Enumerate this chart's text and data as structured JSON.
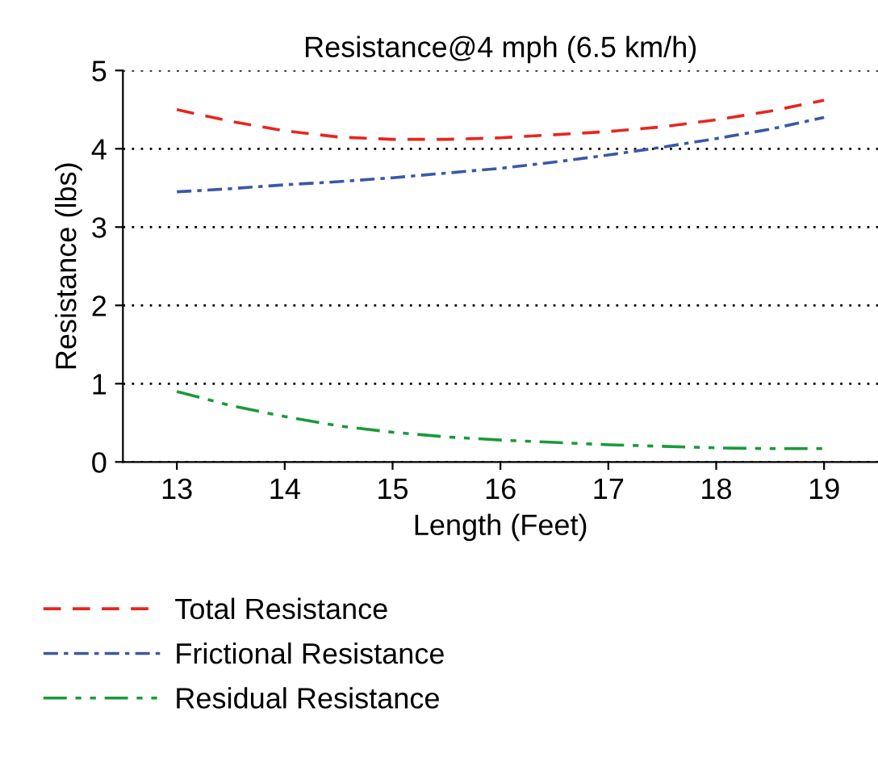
{
  "chart_data": {
    "type": "line",
    "title": "Resistance@4 mph (6.5 km/h)",
    "xlabel": "Length (Feet)",
    "ylabel": "Resistance (lbs)",
    "x": [
      13,
      13.5,
      14,
      14.5,
      15,
      15.5,
      16,
      16.5,
      17,
      17.5,
      18,
      18.5,
      19
    ],
    "series": [
      {
        "name": "Total Resistance",
        "color": "#e8251f",
        "line_style": "dashed",
        "values": [
          4.5,
          4.35,
          4.23,
          4.15,
          4.12,
          4.12,
          4.14,
          4.18,
          4.22,
          4.28,
          4.37,
          4.48,
          4.62
        ]
      },
      {
        "name": "Frictional Resistance",
        "color": "#3a58a8",
        "line_style": "dashdot",
        "values": [
          3.45,
          3.49,
          3.54,
          3.58,
          3.63,
          3.69,
          3.75,
          3.83,
          3.92,
          4.02,
          4.13,
          4.25,
          4.4
        ]
      },
      {
        "name": "Residual Resistance",
        "color": "#1a9a3a",
        "line_style": "dashdotdot",
        "values": [
          0.9,
          0.72,
          0.58,
          0.46,
          0.38,
          0.32,
          0.28,
          0.25,
          0.22,
          0.2,
          0.18,
          0.17,
          0.17
        ]
      }
    ],
    "xlim": [
      12.5,
      19.5
    ],
    "xticks": [
      13,
      14,
      15,
      16,
      17,
      18,
      19
    ],
    "ylim": [
      0,
      5
    ],
    "yticks": [
      0,
      1,
      2,
      3,
      4,
      5
    ],
    "grid": "y",
    "legend": "bottom",
    "marker": "none"
  }
}
